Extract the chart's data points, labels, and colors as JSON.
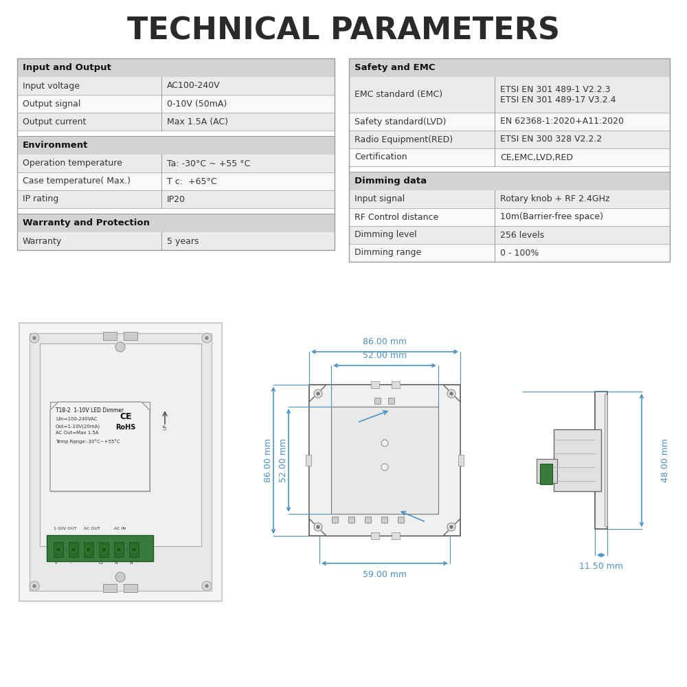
{
  "title": "TECHNICAL PARAMETERS",
  "bg_color": "#ffffff",
  "table_border_color": "#999999",
  "header_bg": "#d3d3d3",
  "row_bg_odd": "#ebebeb",
  "row_bg_even": "#f8f8f8",
  "section_gap_color": "#ffffff",
  "left_table": {
    "sections": [
      {
        "header": "Input and Output",
        "rows": [
          [
            "Input voltage",
            "AC100-240V"
          ],
          [
            "Output signal",
            "0-10V (50mA)"
          ],
          [
            "Output current",
            "Max 1.5A (AC)"
          ]
        ]
      },
      {
        "header": "Environment",
        "rows": [
          [
            "Operation temperature",
            "Ta: -30°C ~ +55 °C"
          ],
          [
            "Case temperature( Max.)",
            "T c:  +65°C"
          ],
          [
            "IP rating",
            "IP20"
          ]
        ]
      },
      {
        "header": "Warranty and Protection",
        "rows": [
          [
            "Warranty",
            "5 years"
          ]
        ]
      }
    ]
  },
  "right_table": {
    "sections": [
      {
        "header": "Safety and EMC",
        "rows": [
          [
            "EMC standard (EMC)",
            "ETSI EN 301 489-1 V2.2.3\nETSI EN 301 489-17 V3.2.4"
          ],
          [
            "Safety standard(LVD)",
            "EN 62368-1:2020+A11:2020"
          ],
          [
            "Radio Equipment(RED)",
            "ETSI EN 300 328 V2.2.2"
          ],
          [
            "Certification",
            "CE,EMC,LVD,RED"
          ]
        ]
      },
      {
        "header": "Dimming data",
        "rows": [
          [
            "Input signal",
            "Rotary knob + RF 2.4GHz"
          ],
          [
            "RF Control distance",
            "10m(Barrier-free space)"
          ],
          [
            "Dimming level",
            "256 levels"
          ],
          [
            "Dimming range",
            "0 - 100%"
          ]
        ]
      }
    ]
  },
  "dim_color": "#4a90c4",
  "dim_annotations": {
    "top_86": "86.00 mm",
    "top_52": "52.00 mm",
    "left_86": "86.00 mm",
    "left_52": "52.00 mm",
    "bottom_59": "59.00 mm",
    "right_48": "48.00 mm",
    "right_11": "11.50 mm"
  }
}
